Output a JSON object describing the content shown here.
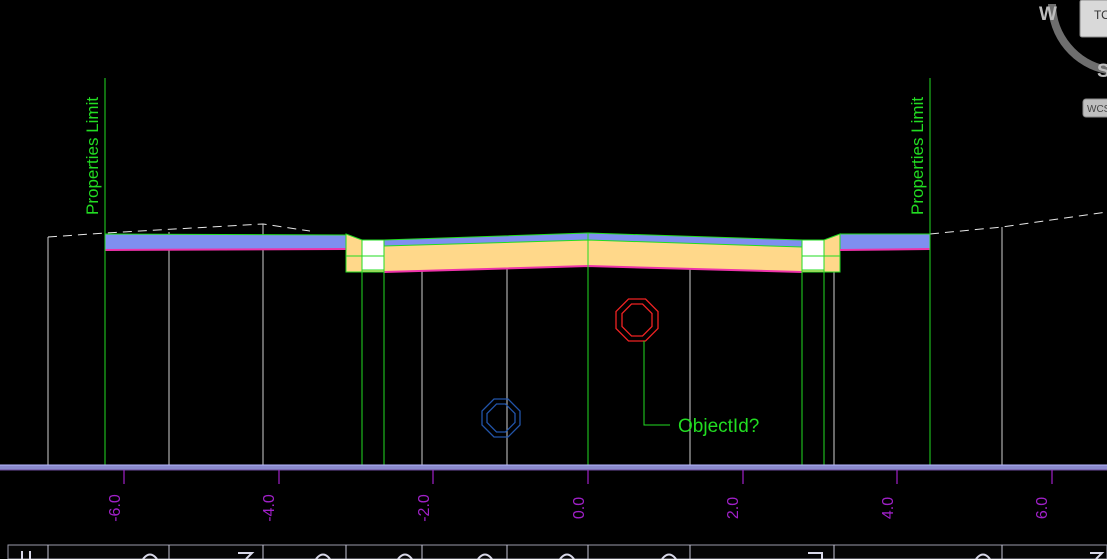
{
  "viewport": {
    "background_color": "#000000",
    "annotations": {
      "left_limit": "Properties Limit",
      "right_limit": "Properties Limit",
      "object_label": "ObjectId?"
    },
    "axis_ticks": [
      "-6.0",
      "-4.0",
      "-2.0",
      "0.0",
      "2.0",
      "4.0",
      "6.0"
    ],
    "colors": {
      "annotation_green": "#22dd22",
      "axis_purple": "#a020c8",
      "pavement_blue": "#7f8ff0",
      "base_orange": "#ffd88a",
      "subgrade_magenta": "#ee33aa",
      "marker_red": "#ee2222",
      "marker_blue": "#2255aa"
    }
  },
  "view_cube": {
    "compass": {
      "west": "W",
      "south": "S"
    },
    "face_label": "TO",
    "coord_system": "WCS"
  }
}
